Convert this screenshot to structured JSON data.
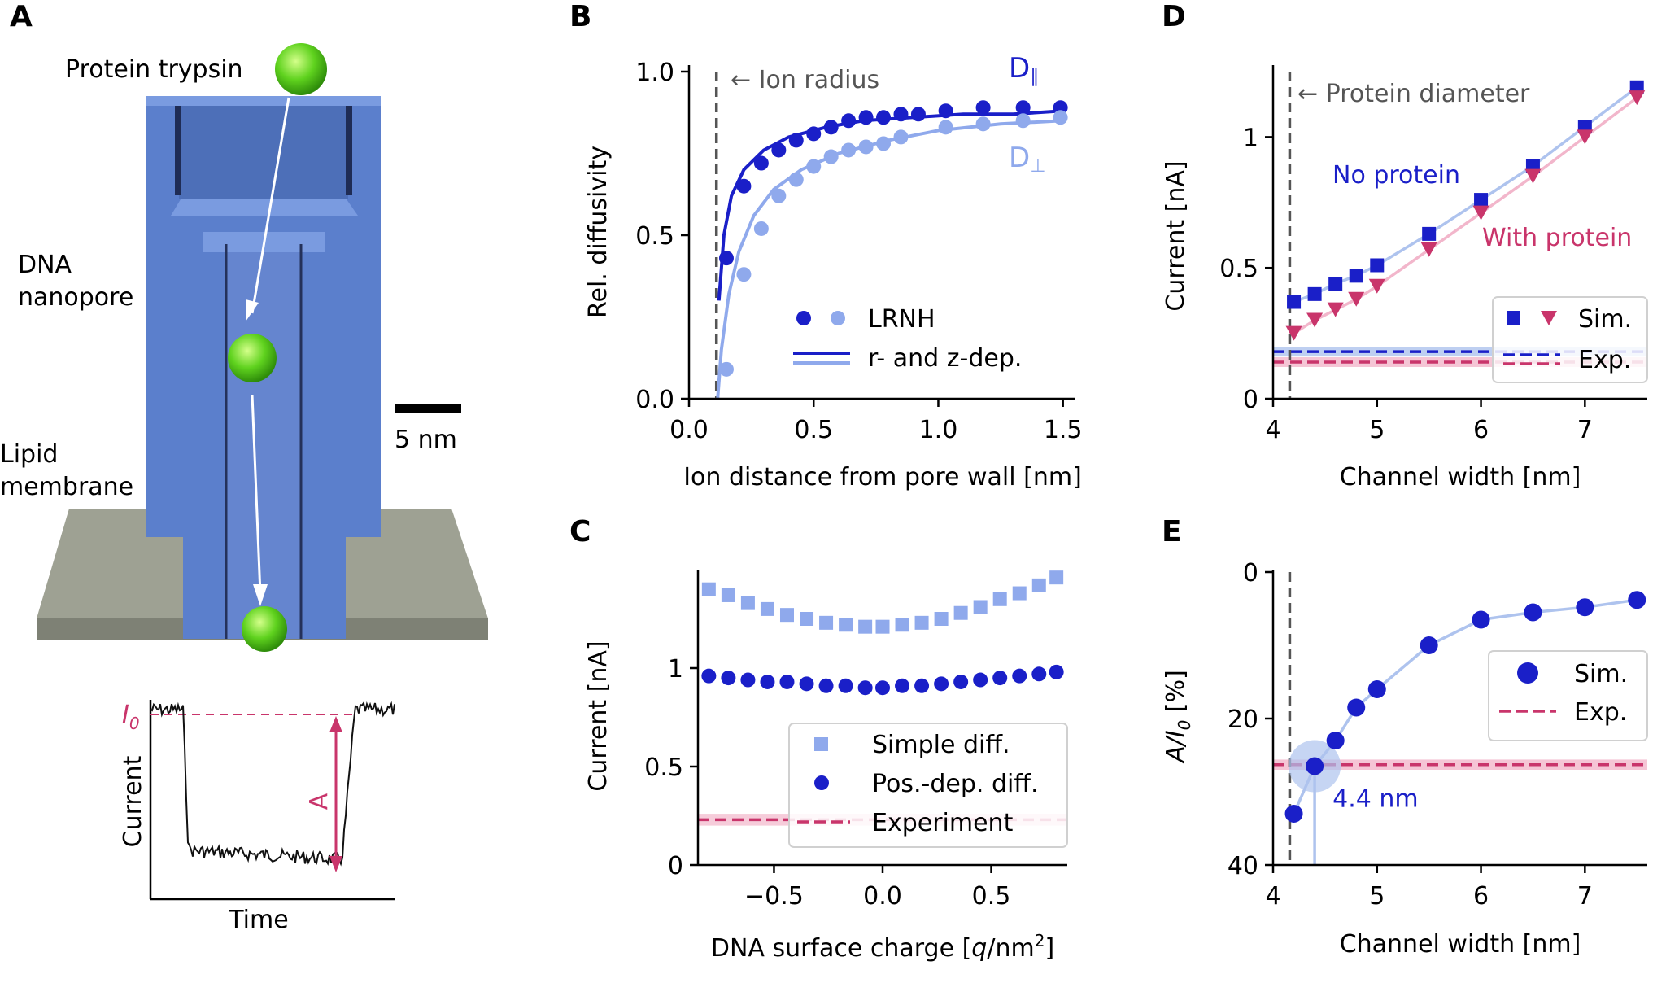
{
  "panel_labels": {
    "a": "A",
    "b": "B",
    "c": "C",
    "d": "D",
    "e": "E"
  },
  "panel_a": {
    "protein_label": "Protein trypsin",
    "pore_label_1": "DNA",
    "pore_label_2": "nanopore",
    "membrane_label_1": "Lipid",
    "membrane_label_2": "membrane",
    "scale_label": "5 nm",
    "trace_ylabel": "Current",
    "trace_xlabel": "Time",
    "i0_label": "I",
    "i0_sub": "0",
    "a_label": "A"
  },
  "colors": {
    "dark_blue": "#1a1fc8",
    "light_blue": "#8fa9ec",
    "pink": "#c9356b",
    "pink_light": "#f2b6cb",
    "blue_band": "#aec3ee",
    "grey_dash": "#555555",
    "pore_blue": "#5b7fcc",
    "membrane": "#9a9d90"
  },
  "chart_data": [
    {
      "id": "B",
      "type": "scatter",
      "xlabel": "Ion distance from pore wall [nm]",
      "ylabel": "Rel. diffusivity",
      "xlim": [
        0,
        1.55
      ],
      "ylim": [
        0,
        1.0
      ],
      "xticks": [
        "0.0",
        "0.5",
        "1.0",
        "1.5"
      ],
      "xtick_values": [
        0,
        0.5,
        1.0,
        1.5
      ],
      "yticks": [
        "0.0",
        "0.5",
        "1.0"
      ],
      "ytick_values": [
        0,
        0.5,
        1.0
      ],
      "vline": {
        "x": 0.11,
        "label": "← Ion radius"
      },
      "series": [
        {
          "name": "D∥",
          "label_main": "D",
          "label_sub": "∥",
          "color": "dark_blue",
          "x": [
            0.15,
            0.22,
            0.29,
            0.36,
            0.43,
            0.5,
            0.57,
            0.64,
            0.71,
            0.78,
            0.85,
            0.92,
            1.03,
            1.18,
            1.34,
            1.49
          ],
          "y": [
            0.43,
            0.65,
            0.72,
            0.76,
            0.79,
            0.81,
            0.83,
            0.85,
            0.86,
            0.86,
            0.87,
            0.87,
            0.88,
            0.89,
            0.89,
            0.89
          ],
          "fit_x": [
            0.12,
            0.14,
            0.17,
            0.22,
            0.3,
            0.4,
            0.55,
            0.7,
            0.9,
            1.1,
            1.3,
            1.5
          ],
          "fit_y": [
            0.3,
            0.5,
            0.62,
            0.7,
            0.76,
            0.8,
            0.83,
            0.85,
            0.86,
            0.87,
            0.87,
            0.88
          ]
        },
        {
          "name": "D⊥",
          "label_main": "D",
          "label_sub": "⊥",
          "color": "light_blue",
          "x": [
            0.15,
            0.22,
            0.29,
            0.36,
            0.43,
            0.5,
            0.57,
            0.64,
            0.71,
            0.78,
            0.85,
            1.03,
            1.18,
            1.34,
            1.49
          ],
          "y": [
            0.09,
            0.38,
            0.52,
            0.62,
            0.67,
            0.71,
            0.74,
            0.76,
            0.77,
            0.78,
            0.8,
            0.83,
            0.84,
            0.85,
            0.86
          ],
          "fit_x": [
            0.115,
            0.13,
            0.16,
            0.2,
            0.26,
            0.34,
            0.45,
            0.6,
            0.8,
            1.0,
            1.25,
            1.5
          ],
          "fit_y": [
            0.0,
            0.15,
            0.32,
            0.45,
            0.56,
            0.64,
            0.7,
            0.75,
            0.79,
            0.82,
            0.84,
            0.85
          ]
        }
      ],
      "legend": [
        "LRNH",
        "r- and z-dep."
      ]
    },
    {
      "id": "C",
      "type": "scatter",
      "xlabel_main": "DNA surface charge [",
      "xlabel_q": "q",
      "xlabel_unit": "/nm",
      "xlabel_sup": "2",
      "xlabel_end": "]",
      "ylabel": "Current [nA]",
      "xlim": [
        -0.85,
        0.85
      ],
      "ylim": [
        0,
        1.5
      ],
      "xticks": [
        "−0.5",
        "0.0",
        "0.5"
      ],
      "xtick_values": [
        -0.5,
        0,
        0.5
      ],
      "yticks": [
        "0",
        "0.5",
        "1"
      ],
      "ytick_values": [
        0,
        0.5,
        1
      ],
      "experiment": {
        "value": 0.23,
        "band": [
          0.2,
          0.26
        ]
      },
      "series": [
        {
          "name": "Simple diff.",
          "marker": "square",
          "color": "light_blue",
          "x": [
            -0.8,
            -0.71,
            -0.62,
            -0.53,
            -0.44,
            -0.35,
            -0.26,
            -0.17,
            -0.08,
            0.0,
            0.09,
            0.18,
            0.27,
            0.36,
            0.45,
            0.54,
            0.63,
            0.72,
            0.8
          ],
          "y": [
            1.4,
            1.37,
            1.33,
            1.3,
            1.27,
            1.25,
            1.23,
            1.22,
            1.21,
            1.21,
            1.22,
            1.23,
            1.25,
            1.28,
            1.31,
            1.35,
            1.38,
            1.42,
            1.46
          ]
        },
        {
          "name": "Pos.-dep. diff.",
          "marker": "circle",
          "color": "dark_blue",
          "x": [
            -0.8,
            -0.71,
            -0.62,
            -0.53,
            -0.44,
            -0.35,
            -0.26,
            -0.17,
            -0.08,
            0.0,
            0.09,
            0.18,
            0.27,
            0.36,
            0.45,
            0.54,
            0.63,
            0.72,
            0.8
          ],
          "y": [
            0.96,
            0.95,
            0.94,
            0.93,
            0.93,
            0.92,
            0.91,
            0.91,
            0.9,
            0.9,
            0.91,
            0.91,
            0.92,
            0.93,
            0.94,
            0.95,
            0.96,
            0.97,
            0.98
          ]
        }
      ],
      "legend": [
        "Simple diff.",
        "Pos.-dep. diff.",
        "Experiment"
      ]
    },
    {
      "id": "D",
      "type": "scatter",
      "xlabel": "Channel width [nm]",
      "ylabel": "Current [nA]",
      "xlim": [
        4,
        7.6
      ],
      "ylim": [
        0,
        1.25
      ],
      "xticks": [
        "4",
        "5",
        "6",
        "7"
      ],
      "xtick_values": [
        4,
        5,
        6,
        7
      ],
      "yticks": [
        "0",
        "0.5",
        "1"
      ],
      "ytick_values": [
        0,
        0.5,
        1
      ],
      "vline": {
        "x": 4.16,
        "label": "← Protein diameter"
      },
      "exp_no_protein": 0.18,
      "exp_with_protein": 0.14,
      "series": [
        {
          "name": "No protein",
          "marker": "square",
          "color": "dark_blue",
          "x": [
            4.2,
            4.4,
            4.6,
            4.8,
            5.0,
            5.5,
            6.0,
            6.5,
            7.0,
            7.5
          ],
          "y": [
            0.37,
            0.4,
            0.44,
            0.47,
            0.51,
            0.63,
            0.76,
            0.89,
            1.04,
            1.19
          ]
        },
        {
          "name": "With protein",
          "marker": "triangle",
          "color": "pink",
          "x": [
            4.2,
            4.4,
            4.6,
            4.8,
            5.0,
            5.5,
            6.0,
            6.5,
            7.0,
            7.5
          ],
          "y": [
            0.25,
            0.3,
            0.34,
            0.38,
            0.43,
            0.57,
            0.71,
            0.85,
            1.0,
            1.15
          ]
        }
      ],
      "legend": [
        "Sim.",
        "Exp."
      ]
    },
    {
      "id": "E",
      "type": "scatter",
      "xlabel": "Channel width [nm]",
      "ylabel_main": "A/I",
      "ylabel_sub": "0",
      "ylabel_end": " [%]",
      "xlim": [
        4,
        7.6
      ],
      "ylim": [
        40,
        0
      ],
      "xticks": [
        "4",
        "5",
        "6",
        "7"
      ],
      "xtick_values": [
        4,
        5,
        6,
        7
      ],
      "yticks": [
        "0",
        "20",
        "40"
      ],
      "ytick_values": [
        0,
        20,
        40
      ],
      "vline": {
        "x": 4.16
      },
      "experiment": {
        "value": 26.3,
        "band": [
          25.6,
          27.0
        ]
      },
      "highlight": {
        "x": 4.4,
        "y": 26.5,
        "label": "4.4 nm"
      },
      "series": [
        {
          "name": "Sim.",
          "marker": "circle",
          "color": "dark_blue",
          "x": [
            4.2,
            4.4,
            4.6,
            4.8,
            5.0,
            5.5,
            6.0,
            6.5,
            7.0,
            7.5
          ],
          "y": [
            33.0,
            26.5,
            23.0,
            18.5,
            16.0,
            10.0,
            6.5,
            5.5,
            4.8,
            3.8
          ]
        }
      ],
      "legend": [
        "Sim.",
        "Exp."
      ]
    }
  ]
}
